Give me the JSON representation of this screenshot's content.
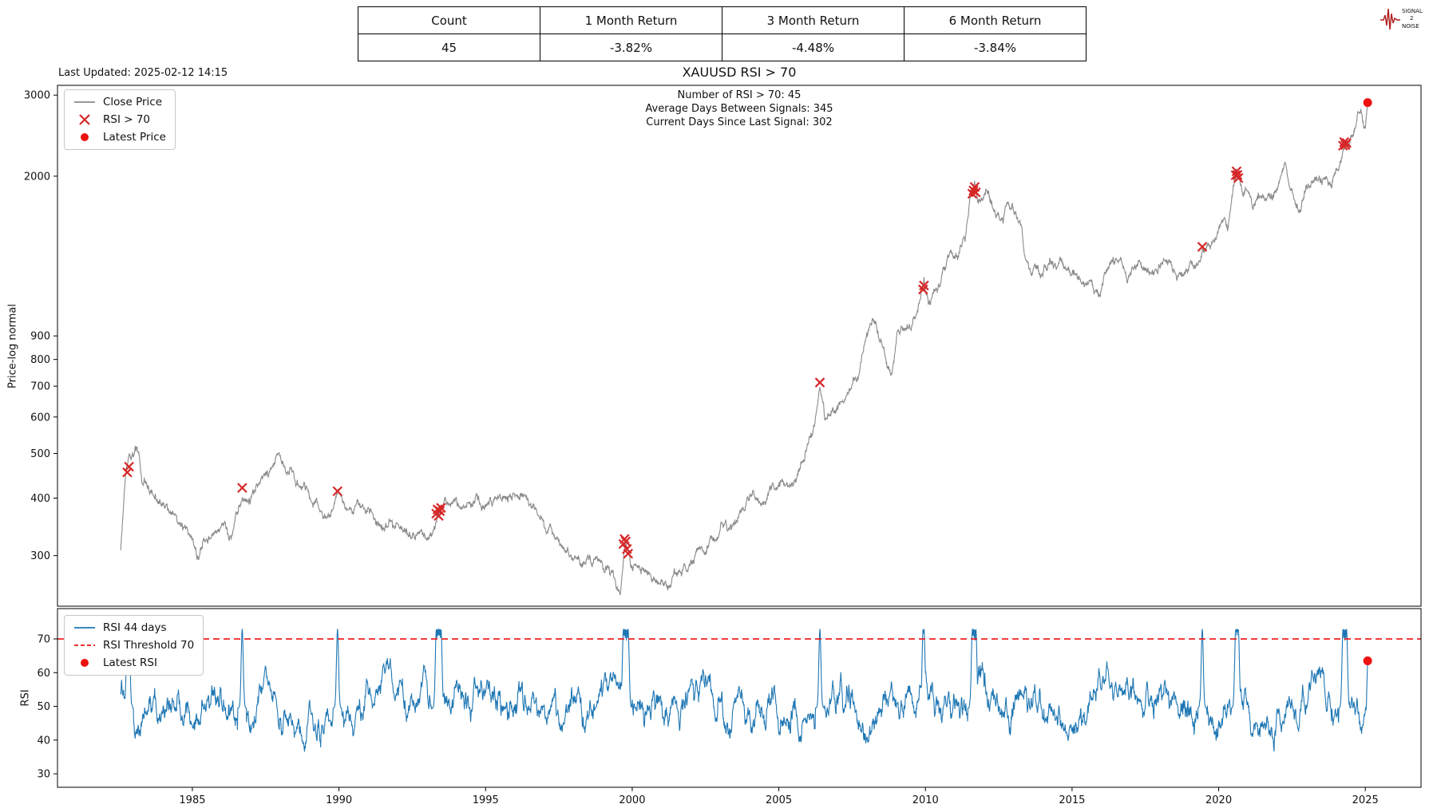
{
  "header": {
    "table": {
      "headers": [
        "Count",
        "1 Month Return",
        "3 Month Return",
        "6 Month Return"
      ],
      "values": [
        "45",
        "-3.82%",
        "-4.48%",
        "-3.84%"
      ]
    },
    "last_updated": "Last Updated: 2025-02-12 14:15",
    "title": "XAUUSD RSI > 70",
    "logo": {
      "text_top": "SIGNAL",
      "text_mid": "2",
      "text_bottom": "NOISE",
      "color": "#b01c1c"
    }
  },
  "chart_data": [
    {
      "type": "line",
      "title": "XAUUSD RSI > 70",
      "ylabel": "Price-log normal",
      "xlabel": "",
      "yscale": "log",
      "grid": false,
      "legend_position": "upper left",
      "legend": [
        "Close Price",
        "RSI > 70",
        "Latest Price"
      ],
      "annotations": [
        "Number of RSI > 70: 45",
        "Average Days Between Signals: 345",
        "Current Days Since Last Signal: 302"
      ],
      "yticks": [
        3000,
        2000,
        900,
        800,
        700,
        600,
        500,
        400,
        300
      ],
      "ylim": [
        233,
        3150
      ],
      "xlim": [
        1980.4,
        2026.9
      ],
      "xticks": [
        1985,
        1990,
        1995,
        2000,
        2005,
        2010,
        2015,
        2020,
        2025
      ],
      "series": [
        {
          "name": "Close Price",
          "color": "#8a8a8a",
          "anchors": [
            [
              1982.55,
              305
            ],
            [
              1982.65,
              370
            ],
            [
              1982.75,
              450
            ],
            [
              1982.85,
              468
            ],
            [
              1983.0,
              478
            ],
            [
              1983.12,
              502
            ],
            [
              1983.28,
              438
            ],
            [
              1983.5,
              420
            ],
            [
              1983.75,
              400
            ],
            [
              1984.0,
              386
            ],
            [
              1984.3,
              380
            ],
            [
              1984.6,
              345
            ],
            [
              1984.9,
              318
            ],
            [
              1985.15,
              296
            ],
            [
              1985.4,
              318
            ],
            [
              1985.7,
              330
            ],
            [
              1986.0,
              345
            ],
            [
              1986.3,
              340
            ],
            [
              1986.55,
              392
            ],
            [
              1986.7,
              420
            ],
            [
              1986.85,
              402
            ],
            [
              1987.1,
              406
            ],
            [
              1987.4,
              448
            ],
            [
              1987.7,
              462
            ],
            [
              1987.95,
              486
            ],
            [
              1988.2,
              452
            ],
            [
              1988.5,
              436
            ],
            [
              1988.8,
              420
            ],
            [
              1989.1,
              392
            ],
            [
              1989.4,
              376
            ],
            [
              1989.65,
              366
            ],
            [
              1989.85,
              398
            ],
            [
              1989.97,
              416
            ],
            [
              1990.15,
              386
            ],
            [
              1990.45,
              366
            ],
            [
              1990.65,
              394
            ],
            [
              1990.9,
              382
            ],
            [
              1991.2,
              366
            ],
            [
              1991.5,
              356
            ],
            [
              1991.8,
              360
            ],
            [
              1992.1,
              346
            ],
            [
              1992.4,
              340
            ],
            [
              1992.7,
              336
            ],
            [
              1993.0,
              330
            ],
            [
              1993.2,
              346
            ],
            [
              1993.4,
              376
            ],
            [
              1993.62,
              396
            ],
            [
              1993.8,
              382
            ],
            [
              1994.1,
              386
            ],
            [
              1994.4,
              380
            ],
            [
              1994.7,
              388
            ],
            [
              1995.0,
              378
            ],
            [
              1995.3,
              384
            ],
            [
              1995.6,
              387
            ],
            [
              1995.9,
              389
            ],
            [
              1996.1,
              406
            ],
            [
              1996.4,
              392
            ],
            [
              1996.7,
              383
            ],
            [
              1997.0,
              355
            ],
            [
              1997.3,
              344
            ],
            [
              1997.6,
              324
            ],
            [
              1997.9,
              300
            ],
            [
              1998.2,
              296
            ],
            [
              1998.5,
              292
            ],
            [
              1998.8,
              291
            ],
            [
              1999.1,
              285
            ],
            [
              1999.35,
              274
            ],
            [
              1999.6,
              257
            ],
            [
              1999.78,
              322
            ],
            [
              1999.95,
              292
            ],
            [
              2000.2,
              286
            ],
            [
              2000.5,
              278
            ],
            [
              2000.8,
              270
            ],
            [
              2001.1,
              262
            ],
            [
              2001.3,
              257
            ],
            [
              2001.6,
              272
            ],
            [
              2001.9,
              278
            ],
            [
              2002.2,
              300
            ],
            [
              2002.5,
              314
            ],
            [
              2002.8,
              320
            ],
            [
              2003.05,
              354
            ],
            [
              2003.3,
              342
            ],
            [
              2003.6,
              364
            ],
            [
              2003.9,
              390
            ],
            [
              2004.1,
              410
            ],
            [
              2004.4,
              392
            ],
            [
              2004.7,
              420
            ],
            [
              2005.0,
              426
            ],
            [
              2005.3,
              430
            ],
            [
              2005.6,
              440
            ],
            [
              2005.9,
              512
            ],
            [
              2006.15,
              556
            ],
            [
              2006.4,
              714
            ],
            [
              2006.58,
              592
            ],
            [
              2006.8,
              622
            ],
            [
              2007.1,
              652
            ],
            [
              2007.4,
              666
            ],
            [
              2007.7,
              730
            ],
            [
              2008.0,
              892
            ],
            [
              2008.2,
              1002
            ],
            [
              2008.45,
              882
            ],
            [
              2008.7,
              800
            ],
            [
              2008.85,
              732
            ],
            [
              2009.05,
              902
            ],
            [
              2009.3,
              928
            ],
            [
              2009.5,
              932
            ],
            [
              2009.7,
              1002
            ],
            [
              2009.95,
              1160
            ],
            [
              2010.1,
              1105
            ],
            [
              2010.35,
              1180
            ],
            [
              2010.6,
              1232
            ],
            [
              2010.85,
              1382
            ],
            [
              2011.1,
              1360
            ],
            [
              2011.35,
              1500
            ],
            [
              2011.55,
              1782
            ],
            [
              2011.68,
              1898
            ],
            [
              2011.8,
              1720
            ],
            [
              2011.95,
              1718
            ],
            [
              2012.15,
              1782
            ],
            [
              2012.4,
              1600
            ],
            [
              2012.65,
              1608
            ],
            [
              2012.8,
              1772
            ],
            [
              2013.0,
              1672
            ],
            [
              2013.2,
              1592
            ],
            [
              2013.28,
              1562
            ],
            [
              2013.35,
              1382
            ],
            [
              2013.55,
              1232
            ],
            [
              2013.75,
              1312
            ],
            [
              2013.95,
              1230
            ],
            [
              2014.2,
              1332
            ],
            [
              2014.45,
              1288
            ],
            [
              2014.7,
              1300
            ],
            [
              2014.95,
              1190
            ],
            [
              2015.2,
              1200
            ],
            [
              2015.45,
              1180
            ],
            [
              2015.7,
              1130
            ],
            [
              2015.95,
              1062
            ],
            [
              2016.2,
              1232
            ],
            [
              2016.5,
              1322
            ],
            [
              2016.65,
              1352
            ],
            [
              2016.9,
              1178
            ],
            [
              2017.1,
              1222
            ],
            [
              2017.35,
              1262
            ],
            [
              2017.6,
              1250
            ],
            [
              2017.85,
              1290
            ],
            [
              2018.1,
              1332
            ],
            [
              2018.35,
              1324
            ],
            [
              2018.6,
              1198
            ],
            [
              2018.8,
              1212
            ],
            [
              2019.05,
              1290
            ],
            [
              2019.3,
              1296
            ],
            [
              2019.45,
              1412
            ],
            [
              2019.65,
              1426
            ],
            [
              2019.85,
              1476
            ],
            [
              2020.05,
              1572
            ],
            [
              2020.2,
              1642
            ],
            [
              2020.3,
              1502
            ],
            [
              2020.45,
              1722
            ],
            [
              2020.6,
              2048
            ],
            [
              2020.75,
              1932
            ],
            [
              2020.95,
              1882
            ],
            [
              2021.15,
              1742
            ],
            [
              2021.35,
              1782
            ],
            [
              2021.55,
              1802
            ],
            [
              2021.75,
              1792
            ],
            [
              2021.95,
              1800
            ],
            [
              2022.15,
              1972
            ],
            [
              2022.25,
              2042
            ],
            [
              2022.45,
              1852
            ],
            [
              2022.6,
              1752
            ],
            [
              2022.75,
              1642
            ],
            [
              2022.95,
              1802
            ],
            [
              2023.1,
              1872
            ],
            [
              2023.3,
              2022
            ],
            [
              2023.5,
              1942
            ],
            [
              2023.7,
              1902
            ],
            [
              2023.85,
              1842
            ],
            [
              2024.0,
              2052
            ],
            [
              2024.15,
              2202
            ],
            [
              2024.3,
              2352
            ],
            [
              2024.45,
              2332
            ],
            [
              2024.6,
              2422
            ],
            [
              2024.75,
              2682
            ],
            [
              2024.85,
              2752
            ],
            [
              2024.95,
              2622
            ],
            [
              2025.08,
              2890
            ]
          ]
        }
      ],
      "signals": {
        "name": "RSI > 70",
        "color": "#d62728",
        "points": [
          [
            1982.78,
            455
          ],
          [
            1982.84,
            468
          ],
          [
            1986.7,
            421
          ],
          [
            1989.95,
            414
          ],
          [
            1993.32,
            370
          ],
          [
            1993.36,
            378
          ],
          [
            1993.4,
            366
          ],
          [
            1993.44,
            375
          ],
          [
            1993.48,
            381
          ],
          [
            1999.7,
            318
          ],
          [
            1999.74,
            326
          ],
          [
            1999.78,
            322
          ],
          [
            1999.82,
            310
          ],
          [
            1999.86,
            303
          ],
          [
            2006.4,
            713
          ],
          [
            2009.92,
            1135
          ],
          [
            2009.95,
            1158
          ],
          [
            2011.6,
            1832
          ],
          [
            2011.64,
            1862
          ],
          [
            2011.68,
            1895
          ],
          [
            2011.72,
            1845
          ],
          [
            2019.44,
            1405
          ],
          [
            2020.58,
            2010
          ],
          [
            2020.61,
            2050
          ],
          [
            2020.64,
            2012
          ],
          [
            2020.67,
            1982
          ],
          [
            2024.24,
            2330
          ],
          [
            2024.28,
            2372
          ],
          [
            2024.32,
            2338
          ],
          [
            2024.36,
            2362
          ]
        ]
      },
      "latest_price": {
        "name": "Latest Price",
        "t": 2025.08,
        "value": 2890,
        "color": "#ee1111"
      }
    },
    {
      "type": "line",
      "ylabel": "RSI",
      "xlabel": "",
      "grid": false,
      "legend_position": "upper left",
      "legend": [
        "RSI 44 days",
        "RSI Threshold 70",
        "Latest RSI"
      ],
      "line_color": "#1f77b4",
      "threshold": 70,
      "threshold_color": "#ee1111",
      "yticks": [
        70,
        60,
        50,
        40,
        30
      ],
      "ylim": [
        26,
        79
      ],
      "latest_rsi": {
        "t": 2025.08,
        "value": 63.5,
        "color": "#ee1111"
      }
    }
  ]
}
